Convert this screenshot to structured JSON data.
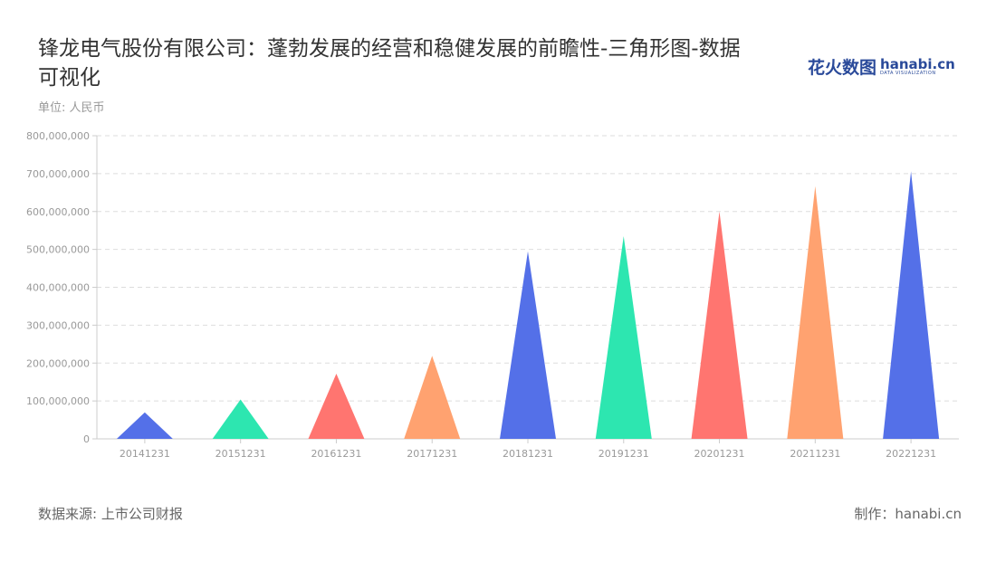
{
  "header": {
    "title": "锋龙电气股份有限公司：蓬勃发展的经营和稳健发展的前瞻性-三角形图-数据可视化",
    "unit": "单位: 人民币",
    "logo_cn": "花火数图",
    "logo_en": "hanabi.cn",
    "logo_sub": "DATA VISUALIZATION"
  },
  "footer": {
    "source": "数据来源: 上市公司财报",
    "maker": "制作：hanabi.cn"
  },
  "chart_data": {
    "type": "bar",
    "mark": "triangle",
    "title": "锋龙电气股份有限公司：蓬勃发展的经营和稳健发展的前瞻性-三角形图-数据可视化",
    "xlabel": "",
    "ylabel": "单位: 人民币",
    "ylim": [
      0,
      800000000
    ],
    "yticks": [
      0,
      100000000,
      200000000,
      300000000,
      400000000,
      500000000,
      600000000,
      700000000,
      800000000
    ],
    "ytick_labels": [
      "0",
      "100,000,000",
      "200,000,000",
      "300,000,000",
      "400,000,000",
      "500,000,000",
      "600,000,000",
      "700,000,000",
      "800,000,000"
    ],
    "grid": true,
    "categories": [
      "20141231",
      "20151231",
      "20161231",
      "20171231",
      "20181231",
      "20191231",
      "20201231",
      "20211231",
      "20221231"
    ],
    "values": [
      70000000,
      104000000,
      172000000,
      219000000,
      495000000,
      535000000,
      600000000,
      667000000,
      706000000
    ],
    "colors": [
      "#5470e8",
      "#2de6b0",
      "#ff7570",
      "#ffa270",
      "#5470e8",
      "#2de6b0",
      "#ff7570",
      "#ffa270",
      "#5470e8"
    ]
  }
}
